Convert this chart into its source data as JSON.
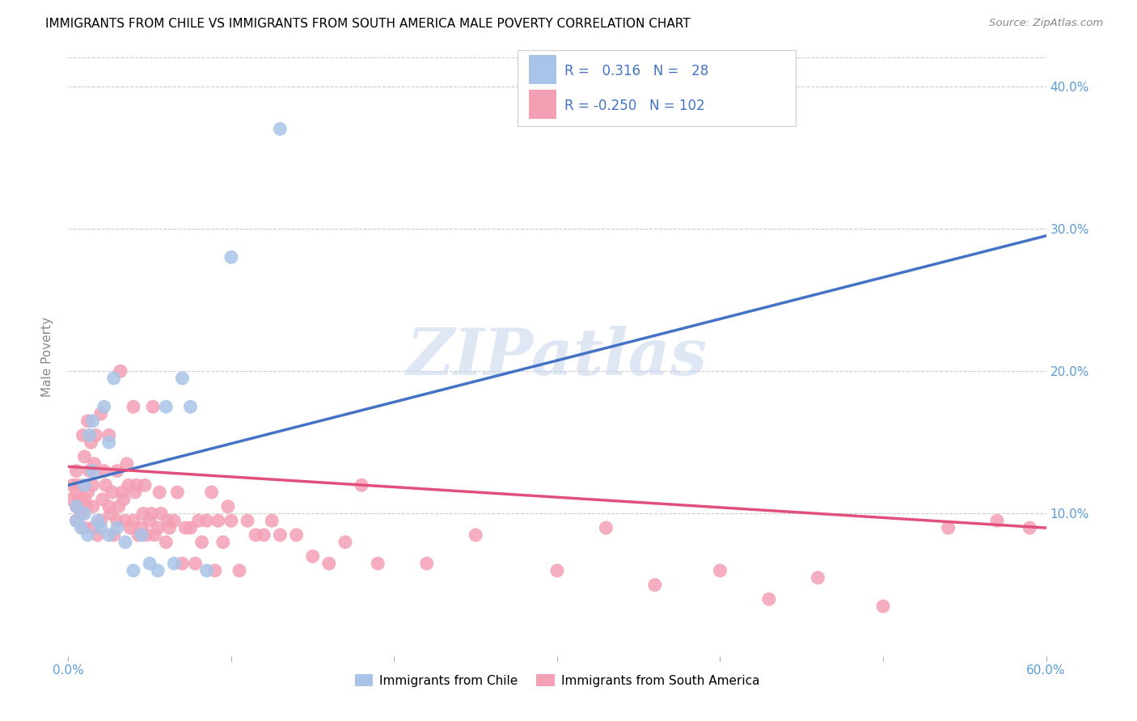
{
  "title": "IMMIGRANTS FROM CHILE VS IMMIGRANTS FROM SOUTH AMERICA MALE POVERTY CORRELATION CHART",
  "source": "Source: ZipAtlas.com",
  "ylabel": "Male Poverty",
  "xlim": [
    0.0,
    0.6
  ],
  "ylim": [
    0.0,
    0.42
  ],
  "xticks": [
    0.0,
    0.1,
    0.2,
    0.3,
    0.4,
    0.5,
    0.6
  ],
  "xticklabels": [
    "0.0%",
    "",
    "",
    "",
    "",
    "",
    "60.0%"
  ],
  "yticks": [
    0.0,
    0.1,
    0.2,
    0.3,
    0.4
  ],
  "yticklabels": [
    "",
    "10.0%",
    "20.0%",
    "30.0%",
    "40.0%"
  ],
  "R_chile": 0.316,
  "N_chile": 28,
  "R_southamerica": -0.25,
  "N_southamerica": 102,
  "color_chile": "#a8c4e8",
  "color_southamerica": "#f4a0b4",
  "line_color_chile": "#4472c4",
  "line_color_southamerica": "#e0507a",
  "watermark": "ZIPatlas",
  "legend_label_chile": "Immigrants from Chile",
  "legend_label_southamerica": "Immigrants from South America",
  "chile_x": [
    0.005,
    0.005,
    0.008,
    0.01,
    0.01,
    0.012,
    0.013,
    0.015,
    0.015,
    0.018,
    0.02,
    0.022,
    0.025,
    0.025,
    0.028,
    0.03,
    0.035,
    0.04,
    0.045,
    0.05,
    0.055,
    0.06,
    0.065,
    0.07,
    0.075,
    0.085,
    0.1,
    0.13
  ],
  "chile_y": [
    0.095,
    0.105,
    0.09,
    0.1,
    0.12,
    0.085,
    0.155,
    0.13,
    0.165,
    0.095,
    0.09,
    0.175,
    0.085,
    0.15,
    0.195,
    0.09,
    0.08,
    0.06,
    0.085,
    0.065,
    0.06,
    0.175,
    0.065,
    0.195,
    0.175,
    0.06,
    0.28,
    0.37
  ],
  "southamerica_x": [
    0.002,
    0.003,
    0.005,
    0.005,
    0.005,
    0.005,
    0.006,
    0.007,
    0.008,
    0.009,
    0.01,
    0.01,
    0.01,
    0.011,
    0.012,
    0.012,
    0.013,
    0.014,
    0.015,
    0.015,
    0.015,
    0.016,
    0.017,
    0.018,
    0.02,
    0.02,
    0.021,
    0.022,
    0.023,
    0.025,
    0.025,
    0.026,
    0.027,
    0.028,
    0.03,
    0.03,
    0.031,
    0.032,
    0.033,
    0.034,
    0.035,
    0.036,
    0.037,
    0.038,
    0.04,
    0.04,
    0.041,
    0.042,
    0.043,
    0.045,
    0.046,
    0.047,
    0.048,
    0.05,
    0.051,
    0.052,
    0.053,
    0.055,
    0.056,
    0.057,
    0.06,
    0.061,
    0.062,
    0.065,
    0.067,
    0.07,
    0.072,
    0.075,
    0.078,
    0.08,
    0.082,
    0.085,
    0.088,
    0.09,
    0.092,
    0.095,
    0.098,
    0.1,
    0.105,
    0.11,
    0.115,
    0.12,
    0.125,
    0.13,
    0.14,
    0.15,
    0.16,
    0.17,
    0.18,
    0.19,
    0.22,
    0.25,
    0.3,
    0.33,
    0.36,
    0.4,
    0.43,
    0.46,
    0.5,
    0.54,
    0.57,
    0.59
  ],
  "southamerica_y": [
    0.11,
    0.12,
    0.095,
    0.105,
    0.115,
    0.13,
    0.12,
    0.11,
    0.1,
    0.155,
    0.09,
    0.11,
    0.14,
    0.105,
    0.115,
    0.165,
    0.13,
    0.15,
    0.09,
    0.105,
    0.12,
    0.135,
    0.155,
    0.085,
    0.095,
    0.17,
    0.11,
    0.13,
    0.12,
    0.105,
    0.155,
    0.1,
    0.115,
    0.085,
    0.095,
    0.13,
    0.105,
    0.2,
    0.115,
    0.11,
    0.095,
    0.135,
    0.12,
    0.09,
    0.095,
    0.175,
    0.115,
    0.12,
    0.085,
    0.09,
    0.1,
    0.12,
    0.085,
    0.095,
    0.1,
    0.175,
    0.085,
    0.09,
    0.115,
    0.1,
    0.08,
    0.095,
    0.09,
    0.095,
    0.115,
    0.065,
    0.09,
    0.09,
    0.065,
    0.095,
    0.08,
    0.095,
    0.115,
    0.06,
    0.095,
    0.08,
    0.105,
    0.095,
    0.06,
    0.095,
    0.085,
    0.085,
    0.095,
    0.085,
    0.085,
    0.07,
    0.065,
    0.08,
    0.12,
    0.065,
    0.065,
    0.085,
    0.06,
    0.09,
    0.05,
    0.06,
    0.04,
    0.055,
    0.035,
    0.09,
    0.095,
    0.09
  ],
  "chile_line_x": [
    0.0,
    0.6
  ],
  "chile_line_y": [
    0.12,
    0.295
  ],
  "sa_line_x": [
    0.0,
    0.6
  ],
  "sa_line_y": [
    0.133,
    0.09
  ]
}
